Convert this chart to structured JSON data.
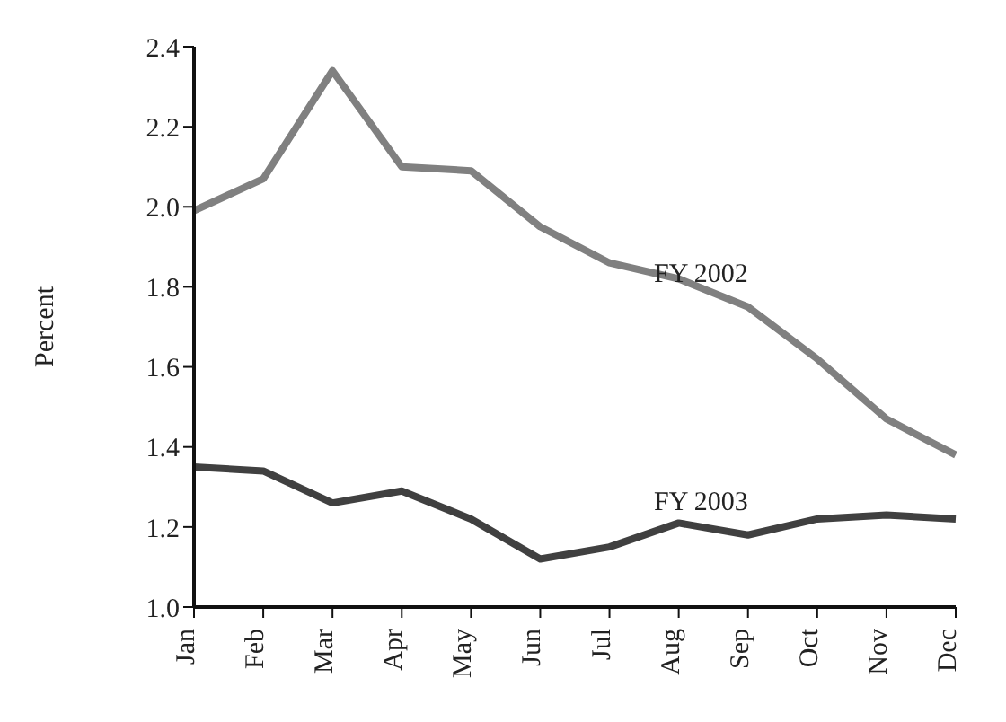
{
  "chart_data": {
    "type": "line",
    "ylabel": "Percent",
    "categories": [
      "Jan",
      "Feb",
      "Mar",
      "Apr",
      "May",
      "Jun",
      "Jul",
      "Aug",
      "Sep",
      "Oct",
      "Nov",
      "Dec"
    ],
    "series": [
      {
        "name": "FY 2002",
        "color": "#808080",
        "values": [
          1.99,
          2.07,
          2.34,
          2.1,
          2.09,
          1.95,
          1.86,
          1.82,
          1.75,
          1.62,
          1.47,
          1.38
        ]
      },
      {
        "name": "FY 2003",
        "color": "#404040",
        "values": [
          1.35,
          1.34,
          1.26,
          1.29,
          1.22,
          1.12,
          1.15,
          1.21,
          1.18,
          1.22,
          1.23,
          1.22
        ]
      }
    ],
    "ylim": [
      1.0,
      2.4
    ],
    "yticks": [
      {
        "value": 1.0,
        "label": "1.0"
      },
      {
        "value": 1.2,
        "label": "1.2"
      },
      {
        "value": 1.4,
        "label": "1.4"
      },
      {
        "value": 1.6,
        "label": "1.6"
      },
      {
        "value": 1.8,
        "label": "1.8"
      },
      {
        "value": 2.0,
        "label": "2.0"
      },
      {
        "value": 2.2,
        "label": "2.2"
      },
      {
        "value": 2.4,
        "label": "2.4"
      }
    ],
    "grid": false,
    "legend": false,
    "marker": "none",
    "line_style": "solid"
  }
}
